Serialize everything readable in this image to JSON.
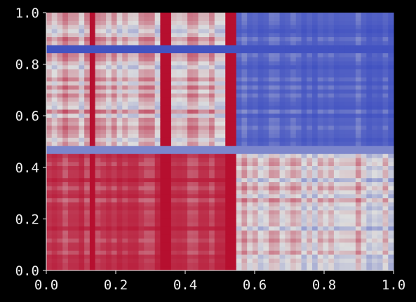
{
  "chart_data": {
    "type": "heatmap",
    "title": "",
    "xlabel": "",
    "ylabel": "",
    "xlim": [
      0.0,
      1.0
    ],
    "ylim": [
      0.0,
      1.0
    ],
    "xticks": [
      "0.0",
      "0.2",
      "0.4",
      "0.6",
      "0.8",
      "1.0"
    ],
    "yticks": [
      "0.0",
      "0.2",
      "0.4",
      "0.6",
      "0.8",
      "1.0"
    ],
    "colormap": "coolwarm",
    "grid": false,
    "legend": "none",
    "grid_size": 64,
    "background_color": "#000000",
    "text_color": "#f0f0f0",
    "colormap_low": "#3b4cc0",
    "colormap_mid": "#dddddd",
    "colormap_high": "#b40426",
    "regions": [
      {
        "x": [
          0.0,
          0.54
        ],
        "y": [
          0.0,
          0.47
        ],
        "value": 0.8
      },
      {
        "x": [
          0.54,
          1.0
        ],
        "y": [
          0.47,
          1.0
        ],
        "value": -0.85
      },
      {
        "x": [
          0.0,
          0.54
        ],
        "y": [
          0.47,
          1.0
        ],
        "value": 0.15
      },
      {
        "x": [
          0.54,
          1.0
        ],
        "y": [
          0.0,
          0.47
        ],
        "value": 0.05
      }
    ],
    "stripes": [
      {
        "axis": "x",
        "at": 0.135,
        "value": 0.95
      },
      {
        "axis": "x",
        "at": 0.345,
        "value": 0.95
      },
      {
        "axis": "x",
        "at": 0.53,
        "value": 0.95
      },
      {
        "axis": "y",
        "at": 0.86,
        "value": -0.95
      },
      {
        "axis": "y",
        "at": 0.465,
        "value": -0.6
      }
    ]
  }
}
